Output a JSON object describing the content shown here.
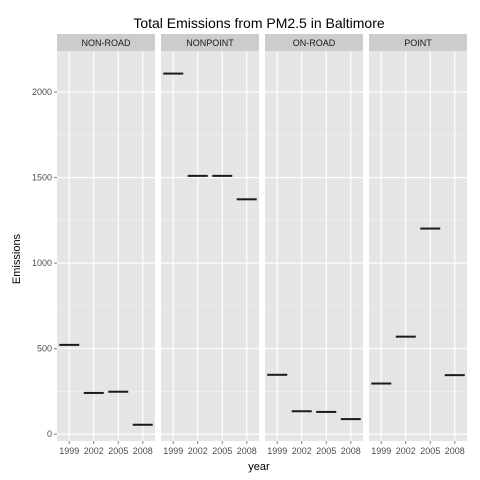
{
  "chart_data": {
    "type": "faceted-crossbar",
    "title": "Total Emissions from PM2.5 in Baltimore",
    "xlabel": "year",
    "ylabel": "Emissions",
    "categories": [
      "1999",
      "2002",
      "2005",
      "2008"
    ],
    "y_ticks": [
      0,
      500,
      1000,
      1500,
      2000
    ],
    "ylim": [
      -40,
      2240
    ],
    "grid": true,
    "colors": {
      "panel_background": "#e5e5e5",
      "strip_background": "#cccccc",
      "grid_major": "#ffffff",
      "bar": "#1a1a1a"
    },
    "facets": [
      {
        "name": "NON-ROAD",
        "values": [
          522,
          241,
          248,
          55
        ]
      },
      {
        "name": "NONPOINT",
        "values": [
          2108,
          1510,
          1510,
          1373
        ]
      },
      {
        "name": "ON-ROAD",
        "values": [
          347,
          134,
          130,
          88
        ]
      },
      {
        "name": "POINT",
        "values": [
          296,
          570,
          1202,
          345
        ]
      }
    ]
  }
}
